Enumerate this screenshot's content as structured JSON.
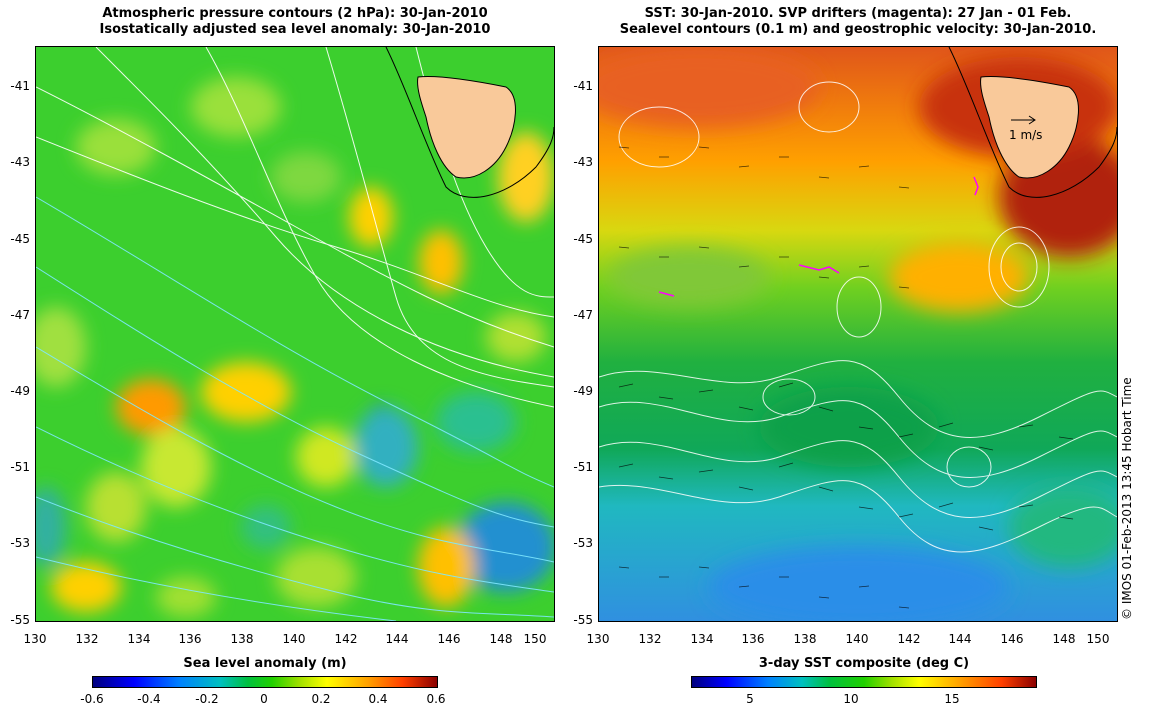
{
  "left_panel": {
    "title_line1": "Atmospheric pressure contours (2 hPa): 30-Jan-2010",
    "title_line2": "Isostatically adjusted sea level anomaly: 30-Jan-2010",
    "colorbar": {
      "label": "Sea level anomaly (m)",
      "ticks": [
        "-0.6",
        "-0.4",
        "-0.2",
        "0",
        "0.2",
        "0.4",
        "0.6"
      ]
    }
  },
  "right_panel": {
    "title_line1": "SST: 30-Jan-2010. SVP drifters (magenta): 27 Jan - 01 Feb.",
    "title_line2": "Sealevel contours (0.1 m) and geostrophic velocity: 30-Jan-2010.",
    "velocity_scale_label": "1 m/s",
    "colorbar": {
      "label": "3-day SST composite (deg C)",
      "ticks": [
        "5",
        "10",
        "15"
      ]
    }
  },
  "axes": {
    "xticks": [
      "130",
      "132",
      "134",
      "136",
      "138",
      "140",
      "142",
      "144",
      "146",
      "148",
      "150"
    ],
    "yticks": [
      "-41",
      "-43",
      "-45",
      "-47",
      "-49",
      "-51",
      "-53",
      "-55"
    ]
  },
  "credit": "© IMOS 01-Feb-2013 13:45 Hobart Time",
  "colors": {
    "land": "#f9c99a",
    "sla_background": "#3ccf2e",
    "sst_warm": "#e04a10",
    "sst_cool": "#2a9fe0",
    "drifter": "#ff00ff"
  }
}
